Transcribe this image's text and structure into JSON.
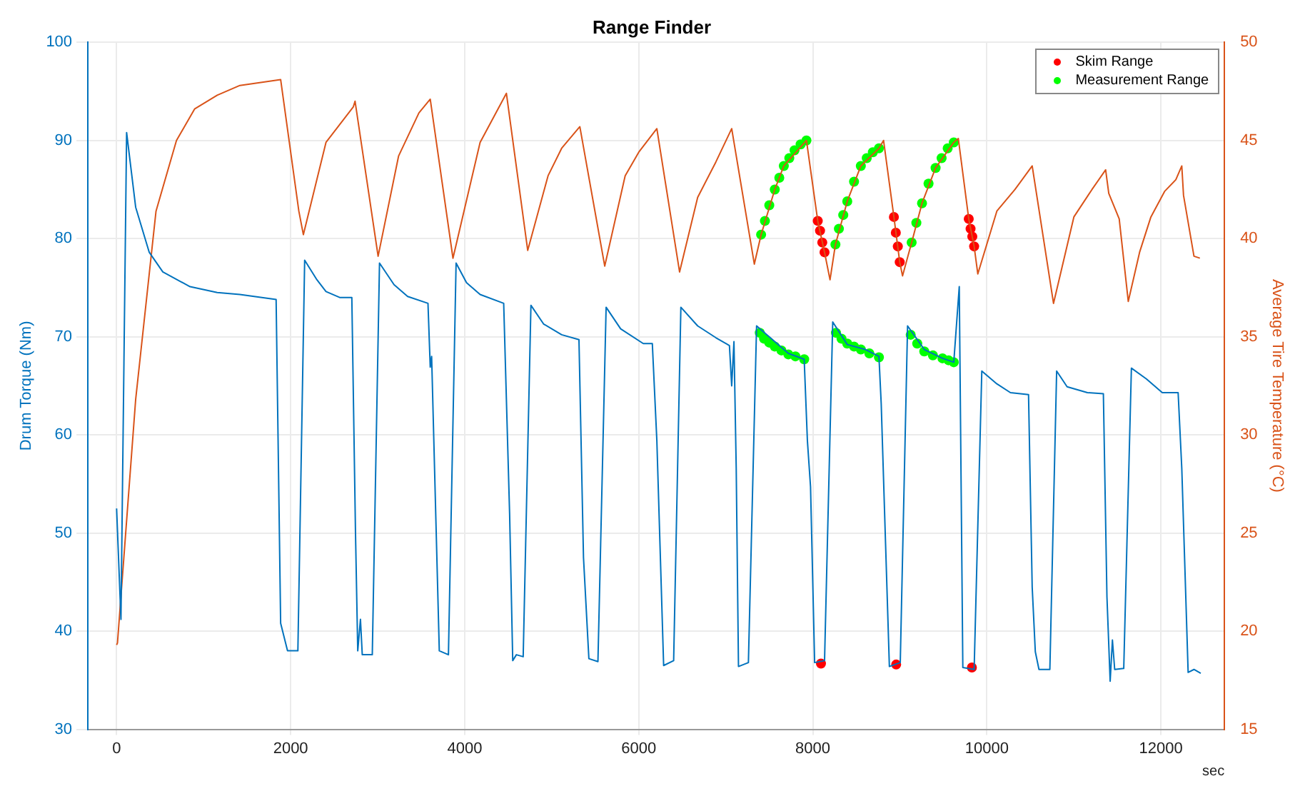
{
  "chart_data": {
    "type": "line",
    "title": "Range Finder",
    "xlabel": "sec",
    "ylabel": "Drum Torque (Nm)",
    "y2label": "Average Tire Temperature (°C)",
    "xlim": [
      -330,
      12730
    ],
    "xticks": [
      0,
      2000,
      4000,
      6000,
      8000,
      10000,
      12000
    ],
    "ylim": [
      30,
      100
    ],
    "yticks": [
      30,
      40,
      50,
      60,
      70,
      80,
      90,
      100
    ],
    "y2lim": [
      15,
      50
    ],
    "y2ticks": [
      15,
      20,
      25,
      30,
      35,
      40,
      45,
      50
    ],
    "grid": true,
    "legend": "top right",
    "series": [
      {
        "color": "#0072bd",
        "axis": "y",
        "x": [
          0,
          50,
          115,
          219,
          375,
          531,
          844,
          1156,
          1417,
          1833,
          1885,
          1964,
          2083,
          2161,
          2302,
          2406,
          2563,
          2703,
          2745,
          2771,
          2802,
          2823,
          2938,
          3021,
          3188,
          3344,
          3578,
          3604,
          3620,
          3708,
          3813,
          3901,
          4021,
          4177,
          4448,
          4516,
          4552,
          4594,
          4672,
          4761,
          4906,
          5114,
          5313,
          5365,
          5427,
          5531,
          5625,
          5792,
          6052,
          6156,
          6208,
          6286,
          6401,
          6484,
          6677,
          6886,
          7042,
          7068,
          7094,
          7120,
          7146,
          7260,
          7354,
          7563,
          7719,
          7901,
          7938,
          7974,
          8021,
          8135,
          8229,
          8396,
          8604,
          8760,
          8786,
          8880,
          9005,
          9089,
          9281,
          9490,
          9620,
          9683,
          9724,
          9854,
          9942,
          10115,
          10271,
          10479,
          10521,
          10557,
          10599,
          10724,
          10802,
          10922,
          11156,
          11339,
          11380,
          11417,
          11443,
          11469,
          11573,
          11661,
          11833,
          12016,
          12198,
          12240,
          12313,
          12380,
          12458
        ],
        "values": [
          52.5,
          41.2,
          90.8,
          83.2,
          78.6,
          76.6,
          75.1,
          74.5,
          74.3,
          73.8,
          40.8,
          38,
          38,
          77.8,
          75.8,
          74.6,
          74,
          74,
          50.1,
          38,
          41.2,
          37.6,
          37.6,
          77.5,
          75.3,
          74.1,
          73.4,
          66.9,
          68,
          38,
          37.6,
          77.5,
          75.5,
          74.3,
          73.4,
          52,
          37,
          37.6,
          37.4,
          73.2,
          71.3,
          70.2,
          69.7,
          47.5,
          37.2,
          36.9,
          73,
          70.8,
          69.3,
          69.3,
          59.4,
          36.5,
          37,
          73,
          71.1,
          69.9,
          69.1,
          65,
          69.5,
          56.6,
          36.4,
          36.8,
          71.1,
          69.5,
          68.3,
          67.7,
          59.4,
          54.7,
          36.8,
          37,
          71.5,
          69.2,
          68.7,
          68,
          63.2,
          36.4,
          36.8,
          71.1,
          68.7,
          67.8,
          67.4,
          75.1,
          36.3,
          36.1,
          66.5,
          65.2,
          64.3,
          64.1,
          44.5,
          37.9,
          36.1,
          36.1,
          66.5,
          64.9,
          64.3,
          64.2,
          43.5,
          34.9,
          39.1,
          36.1,
          36.2,
          66.8,
          65.7,
          64.3,
          64.3,
          56.6,
          35.8,
          36.1,
          35.7
        ]
      },
      {
        "color": "#d95319",
        "axis": "y2",
        "x": [
          0,
          10,
          219,
          453,
          688,
          896,
          1156,
          1417,
          1885,
          2094,
          2146,
          2406,
          2719,
          2740,
          3005,
          3240,
          3474,
          3604,
          3865,
          4177,
          4479,
          4724,
          4958,
          5114,
          5323,
          5609,
          5844,
          6000,
          6208,
          6469,
          6677,
          6886,
          7068,
          7328,
          7406,
          7563,
          7667,
          7927,
          8057,
          8135,
          8198,
          8260,
          8396,
          8552,
          8760,
          8813,
          8932,
          8999,
          9031,
          9136,
          9255,
          9411,
          9620,
          9672,
          9792,
          9854,
          9896,
          10115,
          10323,
          10521,
          10766,
          11000,
          11208,
          11365,
          11401,
          11521,
          11625,
          11755,
          11885,
          12042,
          12172,
          12240,
          12260,
          12380,
          12448
        ],
        "values": [
          19.3,
          19.4,
          31.8,
          41.4,
          45,
          46.6,
          47.3,
          47.8,
          48.1,
          41.4,
          40.2,
          44.9,
          46.7,
          47,
          39.1,
          44.2,
          46.4,
          47.1,
          39,
          44.9,
          47.4,
          39.4,
          43.2,
          44.6,
          45.7,
          38.6,
          43.2,
          44.4,
          45.6,
          38.3,
          42.1,
          43.9,
          45.6,
          38.7,
          40.2,
          42.5,
          43.7,
          45,
          40.9,
          39.3,
          37.9,
          39.7,
          41.9,
          43.7,
          44.6,
          45,
          41.1,
          38.8,
          38.1,
          39.8,
          41.8,
          43.6,
          44.9,
          45.1,
          41,
          39.6,
          38.2,
          41.4,
          42.5,
          43.7,
          36.7,
          41.1,
          42.5,
          43.5,
          42.3,
          41,
          36.8,
          39.3,
          41.1,
          42.4,
          43,
          43.7,
          42.2,
          39.1,
          39
        ]
      },
      {
        "type": "scatter",
        "name": "Skim Range",
        "color": "#ff0000",
        "axis": "y2",
        "marker": "circle",
        "x": [
          8057,
          8083,
          8109,
          8135,
          8932,
          8954,
          8977,
          8999,
          9792,
          9813,
          9833,
          9854
        ],
        "values": [
          40.9,
          40.4,
          39.8,
          39.3,
          41.1,
          40.3,
          39.6,
          38.8,
          41,
          40.5,
          40.1,
          39.6
        ]
      },
      {
        "type": "scatter",
        "color": "#ff0000",
        "axis": "y",
        "marker": "circle",
        "x": [
          8094,
          8958,
          9828
        ],
        "values": [
          36.7,
          36.6,
          36.3
        ]
      },
      {
        "type": "scatter",
        "name": "Measurement Range",
        "color": "#00ff00",
        "axis": "y2",
        "marker": "circle",
        "x": [
          7406,
          7450,
          7500,
          7563,
          7615,
          7667,
          7730,
          7790,
          7860,
          7927,
          8260,
          8300,
          8350,
          8396,
          8474,
          8552,
          8620,
          8690,
          8760,
          9136,
          9190,
          9255,
          9330,
          9411,
          9480,
          9550,
          9620
        ],
        "values": [
          40.2,
          40.9,
          41.7,
          42.5,
          43.1,
          43.7,
          44.1,
          44.5,
          44.8,
          45,
          39.7,
          40.5,
          41.2,
          41.9,
          42.9,
          43.7,
          44.1,
          44.4,
          44.6,
          39.8,
          40.8,
          41.8,
          42.8,
          43.6,
          44.1,
          44.6,
          44.9
        ]
      },
      {
        "type": "scatter",
        "color": "#00ff00",
        "axis": "y",
        "marker": "circle",
        "x": [
          7391,
          7440,
          7500,
          7563,
          7640,
          7719,
          7800,
          7901,
          8266,
          8330,
          8396,
          8474,
          8552,
          8650,
          8760,
          9125,
          9200,
          9281,
          9380,
          9490,
          9560,
          9620
        ],
        "values": [
          70.4,
          69.8,
          69.4,
          69,
          68.6,
          68.2,
          68,
          67.7,
          70.4,
          69.8,
          69.3,
          69,
          68.7,
          68.3,
          67.9,
          70.2,
          69.3,
          68.5,
          68.1,
          67.8,
          67.6,
          67.4
        ]
      }
    ]
  }
}
